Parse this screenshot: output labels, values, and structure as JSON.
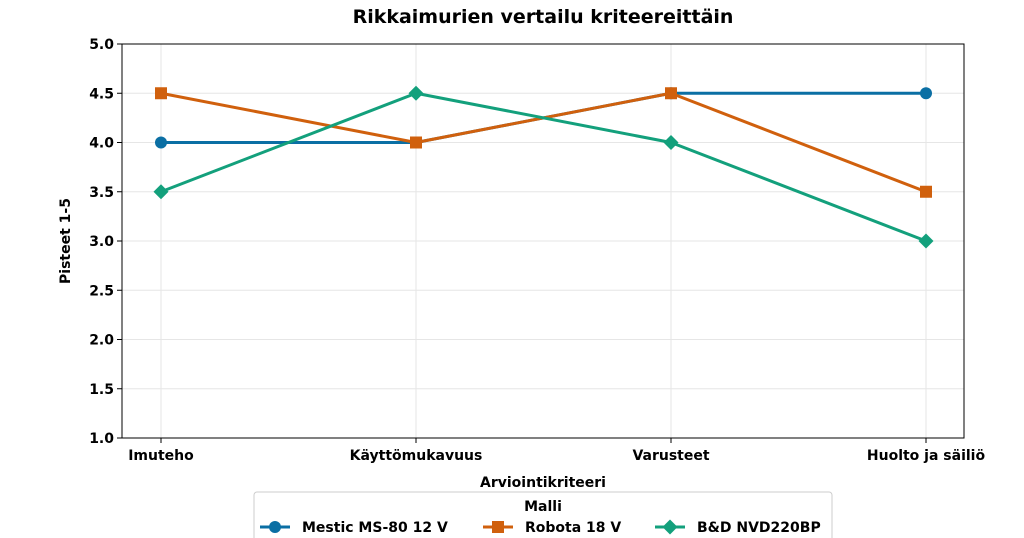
{
  "chart_data": {
    "type": "line",
    "title": "Rikkaimurien vertailu kriteereittäin",
    "xlabel": "Arviointikriteeri",
    "ylabel": "Pisteet 1-5",
    "categories": [
      "Imuteho",
      "Käyttömukavuus",
      "Varusteet",
      "Huolto ja säiliö"
    ],
    "ylim": [
      1.0,
      5.0
    ],
    "yticks": [
      "1.0",
      "1.5",
      "2.0",
      "2.5",
      "3.0",
      "3.5",
      "4.0",
      "4.5",
      "5.0"
    ],
    "grid": true,
    "legend": {
      "title": "Malli",
      "placement": "bottom-center"
    },
    "series": [
      {
        "name": "Mestic MS-80 12 V",
        "values": [
          4.0,
          4.0,
          4.5,
          4.5
        ],
        "color": "#0b6fa4",
        "marker": "circle"
      },
      {
        "name": "Robota 18 V",
        "values": [
          4.5,
          4.0,
          4.5,
          3.5
        ],
        "color": "#d0600d",
        "marker": "square"
      },
      {
        "name": "B&D NVD220BP",
        "values": [
          3.5,
          4.5,
          4.0,
          3.0
        ],
        "color": "#13a07c",
        "marker": "diamond"
      }
    ]
  }
}
